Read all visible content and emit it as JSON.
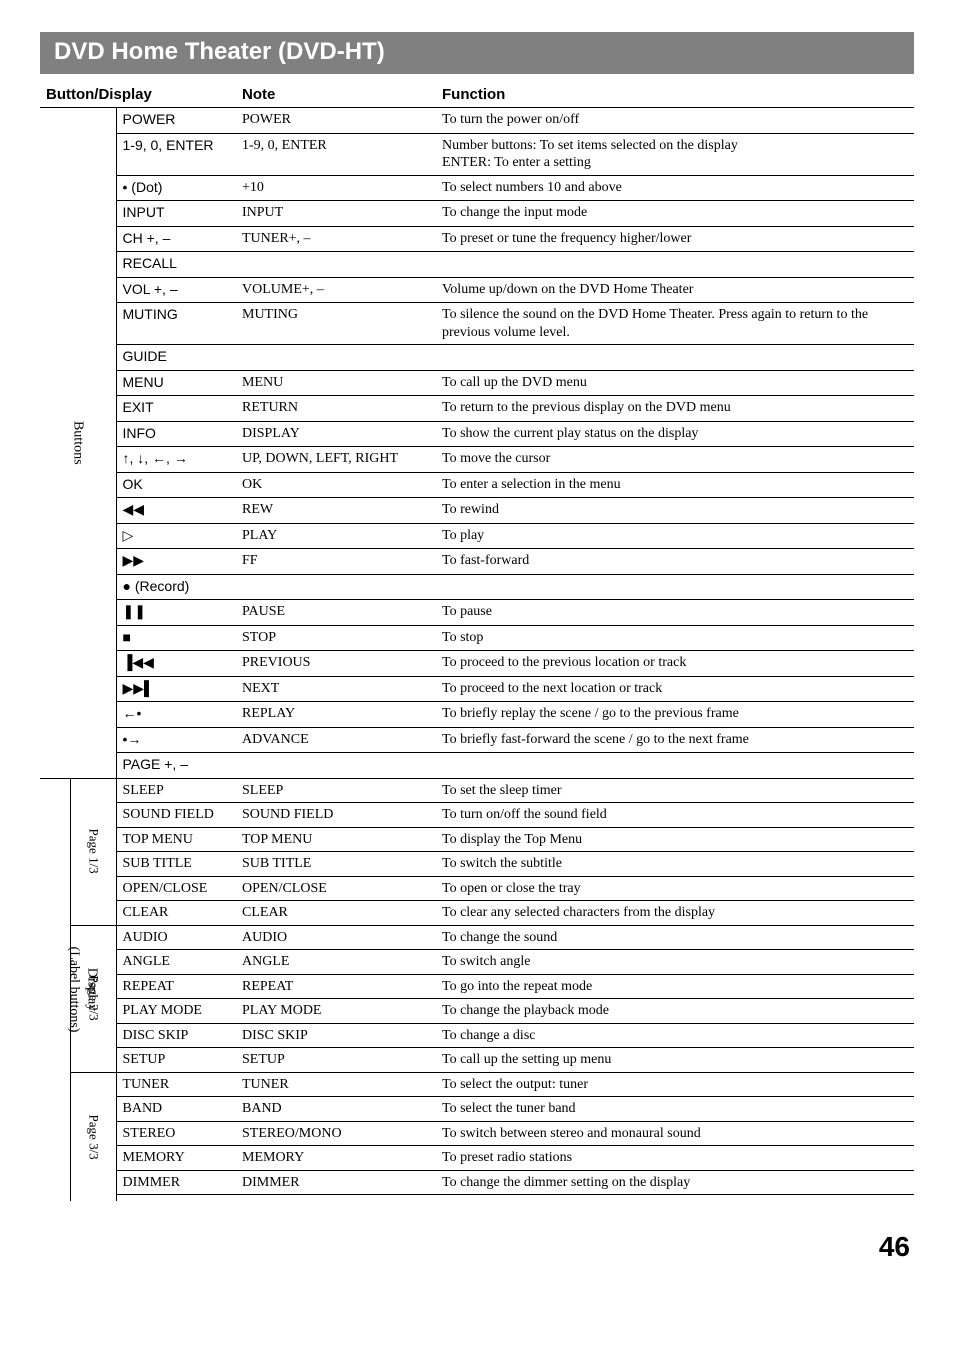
{
  "title": "DVD Home Theater (DVD-HT)",
  "headers": {
    "btn": "Button/Display",
    "note": "Note",
    "func": "Function"
  },
  "groups": {
    "buttons": "Buttons",
    "display": "Display\n(Label buttons)",
    "page13": "Page 1/3",
    "page23": "Page 2/3",
    "page33": "Page 3/3"
  },
  "buttons_rows": [
    {
      "btn": "POWER",
      "note": "POWER",
      "func": "To turn the power on/off"
    },
    {
      "btn": "1-9, 0, ENTER",
      "note": "1-9, 0, ENTER",
      "func": "Number buttons: To set items selected on the display\nENTER: To enter a setting"
    },
    {
      "btn": "• (Dot)",
      "note": "+10",
      "func": "To select numbers 10 and above"
    },
    {
      "btn": "INPUT",
      "note": "INPUT",
      "func": "To change the input mode"
    },
    {
      "btn": "CH +, –",
      "note": "TUNER+, –",
      "func": "To preset or tune the frequency higher/lower"
    },
    {
      "btn": "RECALL",
      "note": "",
      "func": ""
    },
    {
      "btn": "VOL +, –",
      "note": "VOLUME+, –",
      "func": "Volume up/down on the DVD Home Theater"
    },
    {
      "btn": "MUTING",
      "note": "MUTING",
      "func": "To silence the sound on the DVD Home Theater. Press again to return to the previous volume level."
    },
    {
      "btn": "GUIDE",
      "note": "",
      "func": ""
    },
    {
      "btn": "MENU",
      "note": "MENU",
      "func": "To call up the DVD menu"
    },
    {
      "btn": "EXIT",
      "note": "RETURN",
      "func": "To return to the previous display on the DVD menu"
    },
    {
      "btn": "INFO",
      "note": "DISPLAY",
      "func": "To show the current play status on the display"
    },
    {
      "btn": "↑, ↓, ←, →",
      "note": "UP, DOWN, LEFT, RIGHT",
      "func": "To move the cursor"
    },
    {
      "btn": "OK",
      "note": "OK",
      "func": "To enter a selection in the menu"
    },
    {
      "btn": "◀◀",
      "note": "REW",
      "func": "To rewind"
    },
    {
      "btn": "▷",
      "note": "PLAY",
      "func": "To play"
    },
    {
      "btn": "▶▶",
      "note": "FF",
      "func": "To fast-forward"
    },
    {
      "btn": "● (Record)",
      "note": "",
      "func": ""
    },
    {
      "btn": "❚❚",
      "note": "PAUSE",
      "func": "To pause"
    },
    {
      "btn": "■",
      "note": "STOP",
      "func": "To stop"
    },
    {
      "btn": "▐◀◀",
      "note": "PREVIOUS",
      "func": "To proceed to the previous location or track"
    },
    {
      "btn": "▶▶▌",
      "note": "NEXT",
      "func": "To proceed to the next location or track"
    },
    {
      "btn": "←•",
      "note": "REPLAY",
      "func": "To briefly replay the scene / go to the previous frame"
    },
    {
      "btn": "•→",
      "note": "ADVANCE",
      "func": "To briefly fast-forward the scene / go to the next frame"
    },
    {
      "btn": "PAGE +, –",
      "note": "",
      "func": ""
    }
  ],
  "page13_rows": [
    {
      "btn": "SLEEP",
      "note": "SLEEP",
      "func": "To set the sleep timer"
    },
    {
      "btn": "SOUND FIELD",
      "note": "SOUND FIELD",
      "func": "To turn on/off the sound field"
    },
    {
      "btn": "TOP MENU",
      "note": "TOP MENU",
      "func": "To display the Top Menu"
    },
    {
      "btn": "SUB TITLE",
      "note": "SUB TITLE",
      "func": "To switch the subtitle"
    },
    {
      "btn": "OPEN/CLOSE",
      "note": "OPEN/CLOSE",
      "func": "To open or close the tray"
    },
    {
      "btn": "CLEAR",
      "note": "CLEAR",
      "func": "To clear any selected characters from the display"
    }
  ],
  "page23_rows": [
    {
      "btn": "AUDIO",
      "note": "AUDIO",
      "func": "To change the sound"
    },
    {
      "btn": "ANGLE",
      "note": "ANGLE",
      "func": "To switch angle"
    },
    {
      "btn": "REPEAT",
      "note": "REPEAT",
      "func": "To go into the repeat mode"
    },
    {
      "btn": "PLAY MODE",
      "note": "PLAY MODE",
      "func": "To change the playback mode"
    },
    {
      "btn": "DISC SKIP",
      "note": "DISC SKIP",
      "func": "To change a disc"
    },
    {
      "btn": "SETUP",
      "note": "SETUP",
      "func": "To call up the setting up menu"
    }
  ],
  "page33_rows": [
    {
      "btn": "TUNER",
      "note": "TUNER",
      "func": "To select the output: tuner"
    },
    {
      "btn": "BAND",
      "note": "BAND",
      "func": "To select the tuner band"
    },
    {
      "btn": "STEREO",
      "note": "STEREO/MONO",
      "func": "To switch between stereo and monaural sound"
    },
    {
      "btn": "MEMORY",
      "note": "MEMORY",
      "func": "To preset radio stations"
    },
    {
      "btn": "DIMMER",
      "note": "DIMMER",
      "func": "To change the dimmer setting on the display"
    },
    {
      "btn": "",
      "note": "",
      "func": ""
    }
  ],
  "page_number": "46"
}
